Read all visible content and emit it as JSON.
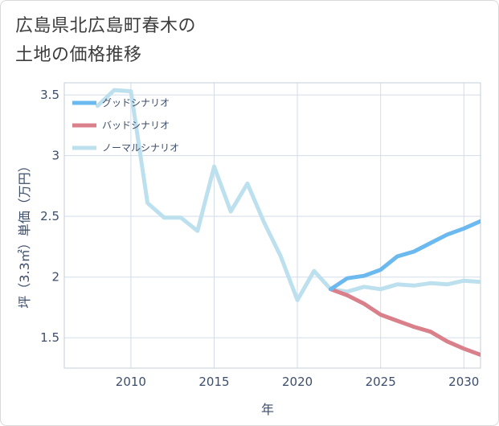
{
  "title": {
    "line1": "広島県北広島町春木の",
    "line2": "土地の価格推移"
  },
  "chart_data": {
    "type": "line",
    "title": "広島県北広島町春木の土地の価格推移",
    "xlabel": "年",
    "ylabel": "坪（3.3㎡）単価（万円）",
    "xlim": [
      2006,
      2031
    ],
    "ylim": [
      1.25,
      3.6
    ],
    "x_ticks": [
      2010,
      2015,
      2020,
      2025,
      2030
    ],
    "y_ticks": [
      1.5,
      2,
      2.5,
      3,
      3.5
    ],
    "y_tick_labels": [
      "1.5",
      "2",
      "2.5",
      "3",
      "3.5"
    ],
    "grid": true,
    "legend_position": "top-left",
    "series": [
      {
        "name": "グッドシナリオ",
        "color": "#6cb9f0",
        "x": [
          2022,
          2023,
          2024,
          2025,
          2026,
          2027,
          2028,
          2029,
          2030,
          2031
        ],
        "y": [
          1.9,
          1.99,
          2.01,
          2.06,
          2.17,
          2.21,
          2.28,
          2.35,
          2.4,
          2.46
        ]
      },
      {
        "name": "バッドシナリオ",
        "color": "#d9808a",
        "x": [
          2022,
          2023,
          2024,
          2025,
          2026,
          2027,
          2028,
          2029,
          2030,
          2031
        ],
        "y": [
          1.9,
          1.85,
          1.78,
          1.69,
          1.64,
          1.59,
          1.55,
          1.47,
          1.41,
          1.36
        ]
      },
      {
        "name": "ノーマルシナリオ",
        "color": "#bde0ee",
        "x": [
          2008,
          2009,
          2010,
          2011,
          2012,
          2013,
          2014,
          2015,
          2016,
          2017,
          2018,
          2019,
          2020,
          2021,
          2022,
          2023,
          2024,
          2025,
          2026,
          2027,
          2028,
          2029,
          2030,
          2031
        ],
        "y": [
          3.41,
          3.54,
          3.53,
          2.61,
          2.49,
          2.49,
          2.38,
          2.91,
          2.54,
          2.77,
          2.45,
          2.17,
          1.81,
          2.05,
          1.9,
          1.88,
          1.92,
          1.9,
          1.94,
          1.93,
          1.95,
          1.94,
          1.97,
          1.96
        ]
      }
    ]
  }
}
